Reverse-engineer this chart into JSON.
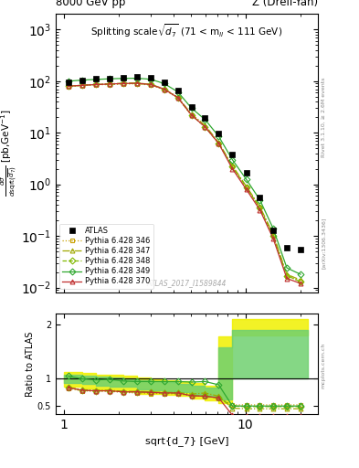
{
  "title_left": "8000 GeV pp",
  "title_right": "Z (Drell-Yan)",
  "plot_title": "Splitting scale $\\sqrt{\\overline{d_7}}$ (71 < m$_{ll}$ < 111 GeV)",
  "watermark": "ATLAS_2017_I1589844",
  "right_label": "Rivet 3.1.10, ≥ 2.6M events",
  "arxiv_label": "[arXiv:1306.3436]",
  "mcplots_label": "mcplots.cern.ch",
  "atlas_x": [
    1.06,
    1.26,
    1.5,
    1.78,
    2.12,
    2.52,
    3.0,
    3.56,
    4.24,
    5.04,
    5.99,
    7.12,
    8.47,
    10.1,
    12.0,
    14.2,
    16.9,
    20.1
  ],
  "atlas_y": [
    95,
    105,
    110,
    112,
    118,
    120,
    115,
    95,
    65,
    32,
    19,
    9.5,
    3.8,
    1.7,
    0.55,
    0.13,
    0.06,
    0.055
  ],
  "py346_x": [
    1.06,
    1.26,
    1.5,
    1.78,
    2.12,
    2.52,
    3.0,
    3.56,
    4.24,
    5.04,
    5.99,
    7.12,
    8.47,
    10.1,
    12.0,
    14.2,
    16.9,
    20.1
  ],
  "py346_y": [
    78,
    82,
    85,
    86,
    88,
    89,
    84,
    69,
    47,
    22,
    13,
    6.2,
    2.2,
    0.88,
    0.35,
    0.1,
    0.017,
    0.013
  ],
  "py347_x": [
    1.06,
    1.26,
    1.5,
    1.78,
    2.12,
    2.52,
    3.0,
    3.56,
    4.24,
    5.04,
    5.99,
    7.12,
    8.47,
    10.1,
    12.0,
    14.2,
    16.9,
    20.1
  ],
  "py347_y": [
    80,
    84,
    87,
    89,
    91,
    92,
    87,
    71,
    49,
    23,
    14,
    6.5,
    2.3,
    0.92,
    0.37,
    0.11,
    0.018,
    0.014
  ],
  "py348_x": [
    1.06,
    1.26,
    1.5,
    1.78,
    2.12,
    2.52,
    3.0,
    3.56,
    4.24,
    5.04,
    5.99,
    7.12,
    8.47,
    10.1,
    12.0,
    14.2,
    16.9,
    20.1
  ],
  "py348_y": [
    80,
    83,
    86,
    88,
    90,
    91,
    86,
    70,
    48,
    22,
    13,
    6.2,
    2.2,
    0.88,
    0.35,
    0.1,
    0.017,
    0.013
  ],
  "py349_x": [
    1.06,
    1.26,
    1.5,
    1.78,
    2.12,
    2.52,
    3.0,
    3.56,
    4.24,
    5.04,
    5.99,
    7.12,
    8.47,
    10.1,
    12.0,
    14.2,
    16.9,
    20.1
  ],
  "py349_y": [
    100,
    105,
    108,
    111,
    113,
    114,
    109,
    90,
    62,
    30,
    18,
    8.5,
    3.0,
    1.25,
    0.5,
    0.14,
    0.024,
    0.018
  ],
  "py370_x": [
    1.06,
    1.26,
    1.5,
    1.78,
    2.12,
    2.52,
    3.0,
    3.56,
    4.24,
    5.04,
    5.99,
    7.12,
    8.47,
    10.1,
    12.0,
    14.2,
    16.9,
    20.1
  ],
  "py370_y": [
    80,
    83,
    86,
    88,
    90,
    91,
    86,
    70,
    48,
    22,
    13,
    6.2,
    2.0,
    0.8,
    0.32,
    0.09,
    0.015,
    0.012
  ],
  "ratio_346": [
    0.82,
    0.78,
    0.77,
    0.77,
    0.75,
    0.74,
    0.73,
    0.73,
    0.72,
    0.69,
    0.68,
    0.65,
    0.52,
    0.52,
    0.52,
    0.52,
    0.52,
    0.52
  ],
  "ratio_347": [
    0.84,
    0.8,
    0.79,
    0.79,
    0.77,
    0.77,
    0.76,
    0.75,
    0.75,
    0.72,
    0.74,
    0.68,
    0.46,
    0.45,
    0.45,
    0.45,
    0.45,
    0.45
  ],
  "ratio_348": [
    0.84,
    0.79,
    0.78,
    0.78,
    0.76,
    0.76,
    0.75,
    0.74,
    0.74,
    0.69,
    0.68,
    0.65,
    0.5,
    0.49,
    0.49,
    0.49,
    0.49,
    0.49
  ],
  "ratio_349": [
    1.05,
    1.0,
    0.98,
    0.99,
    0.96,
    0.95,
    0.95,
    0.95,
    0.95,
    0.94,
    0.95,
    0.89,
    0.5,
    0.5,
    0.5,
    0.5,
    0.5,
    0.5
  ],
  "ratio_370": [
    0.84,
    0.79,
    0.78,
    0.78,
    0.76,
    0.76,
    0.75,
    0.74,
    0.74,
    0.69,
    0.68,
    0.65,
    0.33,
    0.32,
    0.32,
    0.32,
    0.32,
    0.32
  ],
  "band_yellow_x": [
    1.0,
    1.26,
    1.5,
    1.78,
    2.12,
    2.52,
    3.0,
    3.56,
    4.24,
    5.04,
    5.99,
    7.12,
    8.47,
    22.0
  ],
  "band_yellow_lo": [
    0.85,
    0.83,
    0.8,
    0.79,
    0.78,
    0.73,
    0.72,
    0.71,
    0.68,
    0.64,
    0.6,
    0.55,
    1.8,
    1.8
  ],
  "band_yellow_hi": [
    1.12,
    1.1,
    1.08,
    1.07,
    1.05,
    1.02,
    1.0,
    0.98,
    0.95,
    0.92,
    0.88,
    1.78,
    2.1,
    2.1
  ],
  "band_green_x": [
    1.0,
    1.26,
    1.5,
    1.78,
    2.12,
    2.52,
    3.0,
    3.56,
    4.24,
    5.04,
    5.99,
    7.12,
    8.47,
    22.0
  ],
  "band_green_lo": [
    0.92,
    0.9,
    0.87,
    0.86,
    0.85,
    0.8,
    0.79,
    0.78,
    0.75,
    0.71,
    0.67,
    0.62,
    1.0,
    1.0
  ],
  "band_green_hi": [
    1.08,
    1.06,
    1.04,
    1.03,
    1.01,
    0.98,
    0.96,
    0.94,
    0.91,
    0.88,
    0.84,
    1.58,
    1.9,
    1.9
  ],
  "color_346": "#c8a000",
  "color_347": "#a0a800",
  "color_348": "#80b800",
  "color_349": "#30a830",
  "color_370": "#c03030",
  "main_ylim": [
    0.008,
    2000
  ],
  "ratio_ylim": [
    0.35,
    2.2
  ],
  "xlim": [
    0.9,
    25
  ]
}
